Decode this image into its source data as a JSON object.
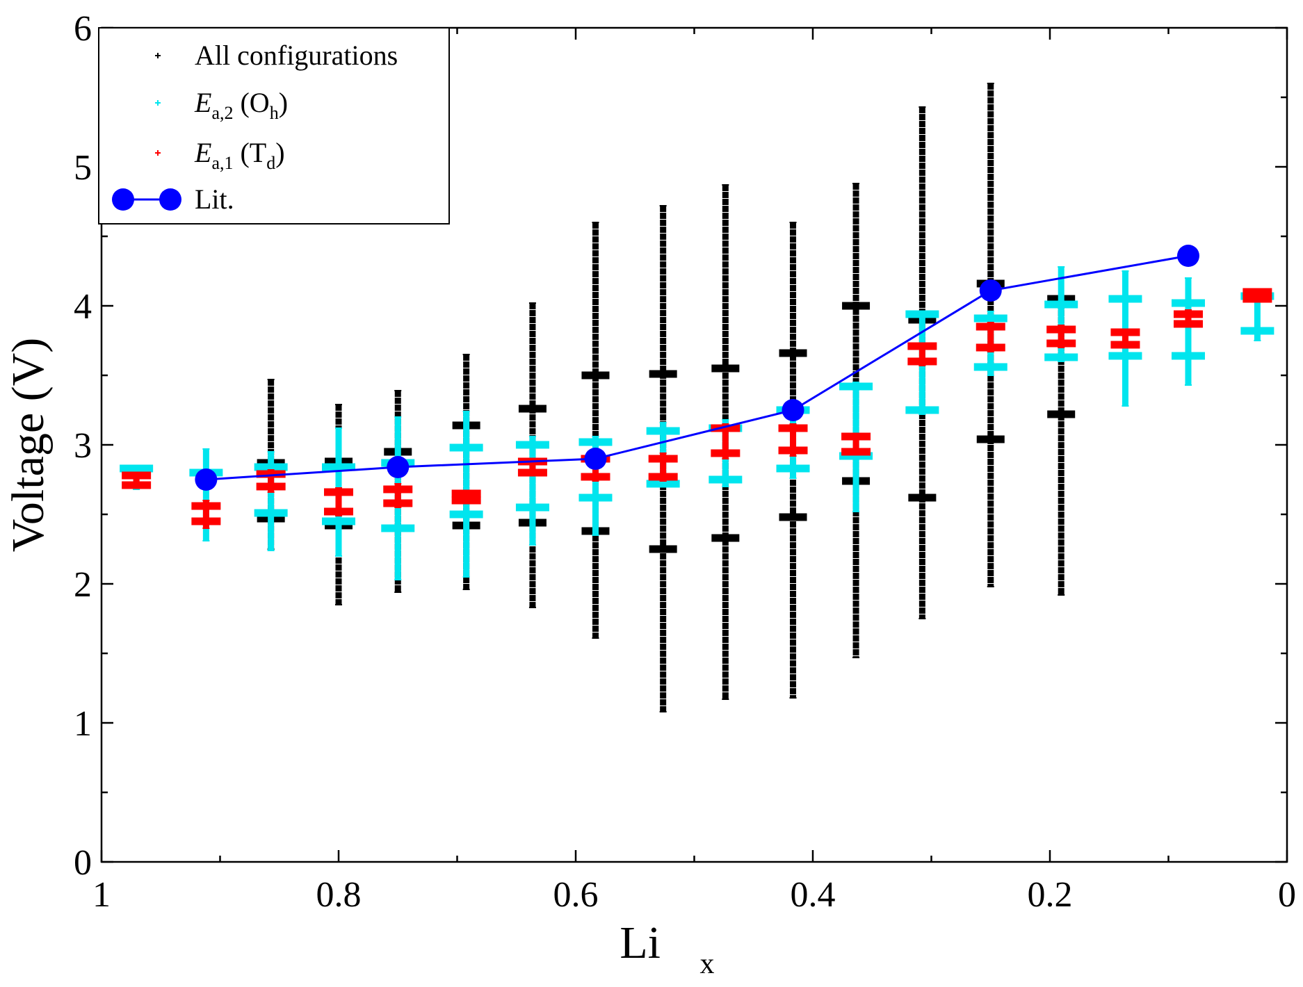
{
  "chart_data": {
    "type": "scatter",
    "title": "",
    "xlabel": "Li",
    "xlabel_sub": "x",
    "ylabel": "Voltage (V)",
    "xlim": [
      1,
      0
    ],
    "ylim": [
      0,
      6
    ],
    "x_ticks": [
      1,
      0.8,
      0.6,
      0.4,
      0.2,
      0
    ],
    "x_tick_labels": [
      "1",
      "0.8",
      "0.6",
      "0.4",
      "0.2",
      "0"
    ],
    "y_ticks": [
      0,
      1,
      2,
      3,
      4,
      5,
      6
    ],
    "y_tick_labels": [
      "0",
      "1",
      "2",
      "3",
      "4",
      "5",
      "6"
    ],
    "legend": {
      "position": "top-left",
      "entries": [
        {
          "label": "All configurations",
          "color": "#000000",
          "marker": "plus"
        },
        {
          "label_main": "E",
          "label_sub": "a,2",
          "label_after": " (O",
          "label_sub2": "h",
          "label_end": ")",
          "color": "#00e5ee",
          "marker": "plus"
        },
        {
          "label_main": "E",
          "label_sub": "a,1",
          "label_after": " (T",
          "label_sub2": "d",
          "label_end": ")",
          "color": "#ff0000",
          "marker": "plus"
        },
        {
          "label": "Lit.",
          "color": "#0000ff",
          "marker": "circle-line"
        }
      ]
    },
    "series": [
      {
        "name": "All configurations",
        "color": "#000000",
        "ranges": [
          {
            "x": 0.8571,
            "min": 2.25,
            "max": 3.47,
            "bar_low": 2.47,
            "bar_high": 2.87
          },
          {
            "x": 0.8,
            "min": 1.85,
            "max": 3.29,
            "bar_low": 2.42,
            "bar_high": 2.88
          },
          {
            "x": 0.75,
            "min": 1.94,
            "max": 3.39,
            "bar_low": null,
            "bar_high": 2.95
          },
          {
            "x": 0.6923,
            "min": 1.96,
            "max": 3.65,
            "bar_low": 2.42,
            "bar_high": 3.14
          },
          {
            "x": 0.6364,
            "min": 1.83,
            "max": 4.02,
            "bar_low": 2.44,
            "bar_high": 3.26
          },
          {
            "x": 0.5833,
            "min": 1.61,
            "max": 4.6,
            "bar_low": 2.38,
            "bar_high": 3.5
          },
          {
            "x": 0.5263,
            "min": 1.08,
            "max": 4.72,
            "bar_low": 2.25,
            "bar_high": 3.51
          },
          {
            "x": 0.4737,
            "min": 1.17,
            "max": 4.87,
            "bar_low": 2.33,
            "bar_high": 3.55
          },
          {
            "x": 0.4167,
            "min": 1.18,
            "max": 4.6,
            "bar_low": 2.48,
            "bar_high": 3.66
          },
          {
            "x": 0.3636,
            "min": 1.47,
            "max": 4.88,
            "bar_low": 2.74,
            "bar_high": 4.0
          },
          {
            "x": 0.3077,
            "min": 1.75,
            "max": 5.43,
            "bar_low": 2.62,
            "bar_high": 3.9
          },
          {
            "x": 0.25,
            "min": 1.98,
            "max": 5.6,
            "bar_low": 3.04,
            "bar_high": 4.16
          },
          {
            "x": 0.1905,
            "min": 1.92,
            "max": 4.07,
            "bar_low": 3.22,
            "bar_high": 4.05
          }
        ]
      },
      {
        "name": "Ea,2 (Oh)",
        "color": "#00e5ee",
        "ranges": [
          {
            "x": 0.9706,
            "min": 2.68,
            "max": 2.85,
            "bar_low": null,
            "bar_high": 2.83
          },
          {
            "x": 0.9118,
            "min": 2.31,
            "max": 2.97,
            "bar_low": null,
            "bar_high": 2.8
          },
          {
            "x": 0.8571,
            "min": 2.24,
            "max": 2.95,
            "bar_low": 2.51,
            "bar_high": 2.84
          },
          {
            "x": 0.8,
            "min": 2.2,
            "max": 3.12,
            "bar_low": 2.45,
            "bar_high": 2.84
          },
          {
            "x": 0.75,
            "min": 2.03,
            "max": 3.2,
            "bar_low": 2.4,
            "bar_high": 2.87
          },
          {
            "x": 0.6923,
            "min": 2.05,
            "max": 3.24,
            "bar_low": 2.5,
            "bar_high": 2.98
          },
          {
            "x": 0.6364,
            "min": 2.28,
            "max": 3.06,
            "bar_low": 2.55,
            "bar_high": 3.0
          },
          {
            "x": 0.5833,
            "min": 2.35,
            "max": 3.06,
            "bar_low": 2.62,
            "bar_high": 3.02
          },
          {
            "x": 0.5263,
            "min": 2.7,
            "max": 3.16,
            "bar_low": 2.72,
            "bar_high": 3.1
          },
          {
            "x": 0.4737,
            "min": 2.7,
            "max": 3.18,
            "bar_low": 2.75,
            "bar_high": 3.12
          },
          {
            "x": 0.4167,
            "min": 2.76,
            "max": 3.32,
            "bar_low": 2.83,
            "bar_high": 3.25
          },
          {
            "x": 0.3636,
            "min": 2.52,
            "max": 3.45,
            "bar_low": 2.92,
            "bar_high": 3.42
          },
          {
            "x": 0.3077,
            "min": 3.22,
            "max": 3.96,
            "bar_low": 3.25,
            "bar_high": 3.94
          },
          {
            "x": 0.25,
            "min": 3.5,
            "max": 3.96,
            "bar_low": 3.56,
            "bar_high": 3.91
          },
          {
            "x": 0.1905,
            "min": 3.6,
            "max": 4.28,
            "bar_low": 3.63,
            "bar_high": 4.01
          },
          {
            "x": 0.1364,
            "min": 3.28,
            "max": 4.25,
            "bar_low": 3.64,
            "bar_high": 4.05
          },
          {
            "x": 0.0833,
            "min": 3.43,
            "max": 4.2,
            "bar_low": 3.64,
            "bar_high": 4.02
          },
          {
            "x": 0.025,
            "min": 3.75,
            "max": 4.1,
            "bar_low": 3.82,
            "bar_high": 4.07
          }
        ]
      },
      {
        "name": "Ea,1 (Td)",
        "color": "#ff0000",
        "ranges": [
          {
            "x": 0.9706,
            "min": 2.7,
            "max": 2.8,
            "bar_low": 2.71,
            "bar_high": 2.78
          },
          {
            "x": 0.9118,
            "min": 2.4,
            "max": 2.6,
            "bar_low": 2.45,
            "bar_high": 2.56
          },
          {
            "x": 0.8571,
            "min": 2.66,
            "max": 2.82,
            "bar_low": 2.7,
            "bar_high": 2.79
          },
          {
            "x": 0.8,
            "min": 2.49,
            "max": 2.69,
            "bar_low": 2.52,
            "bar_high": 2.66
          },
          {
            "x": 0.75,
            "min": 2.55,
            "max": 2.72,
            "bar_low": 2.58,
            "bar_high": 2.68
          },
          {
            "x": 0.6923,
            "min": 2.58,
            "max": 2.67,
            "bar_low": 2.6,
            "bar_high": 2.65
          },
          {
            "x": 0.6364,
            "min": 2.78,
            "max": 2.9,
            "bar_low": 2.8,
            "bar_high": 2.88
          },
          {
            "x": 0.5833,
            "min": 2.74,
            "max": 2.94,
            "bar_low": 2.77,
            "bar_high": 2.9
          },
          {
            "x": 0.5263,
            "min": 2.74,
            "max": 2.94,
            "bar_low": 2.77,
            "bar_high": 2.9
          },
          {
            "x": 0.4737,
            "min": 2.9,
            "max": 3.15,
            "bar_low": 2.94,
            "bar_high": 3.12
          },
          {
            "x": 0.4167,
            "min": 2.92,
            "max": 3.15,
            "bar_low": 2.96,
            "bar_high": 3.12
          },
          {
            "x": 0.3636,
            "min": 2.93,
            "max": 3.08,
            "bar_low": 2.95,
            "bar_high": 3.06
          },
          {
            "x": 0.3077,
            "min": 3.57,
            "max": 3.73,
            "bar_low": 3.6,
            "bar_high": 3.71
          },
          {
            "x": 0.25,
            "min": 3.67,
            "max": 3.88,
            "bar_low": 3.7,
            "bar_high": 3.85
          },
          {
            "x": 0.1905,
            "min": 3.7,
            "max": 3.86,
            "bar_low": 3.73,
            "bar_high": 3.83
          },
          {
            "x": 0.1364,
            "min": 3.71,
            "max": 3.83,
            "bar_low": 3.72,
            "bar_high": 3.81
          },
          {
            "x": 0.0833,
            "min": 3.86,
            "max": 3.97,
            "bar_low": 3.87,
            "bar_high": 3.94
          },
          {
            "x": 0.025,
            "min": 4.04,
            "max": 4.12,
            "bar_low": 4.05,
            "bar_high": 4.1
          }
        ]
      },
      {
        "name": "Lit.",
        "color": "#0000ff",
        "x": [
          0.9118,
          0.75,
          0.5833,
          0.4167,
          0.25,
          0.0833
        ],
        "y": [
          2.75,
          2.84,
          2.9,
          3.25,
          4.11,
          4.36
        ]
      }
    ]
  }
}
